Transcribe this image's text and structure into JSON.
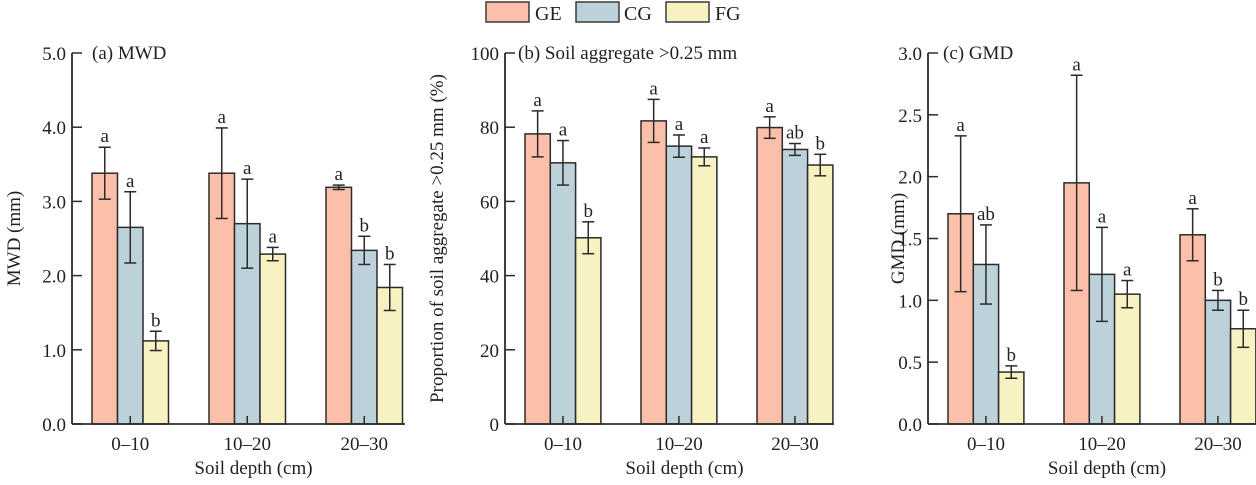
{
  "legend": [
    {
      "name": "GE",
      "color": "#fbbfaa"
    },
    {
      "name": "CG",
      "color": "#bdd1da"
    },
    {
      "name": "FG",
      "color": "#f8f1c1"
    }
  ],
  "chart_data": [
    {
      "type": "bar",
      "title": "(a) MWD",
      "xlabel": "Soil depth (cm)",
      "ylabel": "MWD (mm)",
      "categories": [
        "0–10",
        "10–20",
        "20–30"
      ],
      "ylim": [
        0,
        5.0
      ],
      "yticks": [
        "0.0",
        "1.0",
        "2.0",
        "3.0",
        "4.0",
        "5.0"
      ],
      "ytick_values": [
        0,
        1,
        2,
        3,
        4,
        5
      ],
      "series": [
        {
          "name": "GE",
          "values": [
            3.38,
            3.38,
            3.19
          ],
          "errors": [
            0.35,
            0.61,
            0.03
          ],
          "letters": [
            "a",
            "a",
            "a"
          ]
        },
        {
          "name": "CG",
          "values": [
            2.65,
            2.7,
            2.34
          ],
          "errors": [
            0.48,
            0.6,
            0.19
          ],
          "letters": [
            "a",
            "a",
            "b"
          ]
        },
        {
          "name": "FG",
          "values": [
            1.12,
            2.29,
            1.84
          ],
          "errors": [
            0.13,
            0.09,
            0.31
          ],
          "letters": [
            "b",
            "a",
            "b"
          ]
        }
      ]
    },
    {
      "type": "bar",
      "title": "(b) Soil aggregate >0.25 mm",
      "xlabel": "Soil depth (cm)",
      "ylabel": "Proportion of soil aggregate >0.25 mm (%)",
      "categories": [
        "0–10",
        "10–20",
        "20–30"
      ],
      "ylim": [
        0,
        100
      ],
      "yticks": [
        "0",
        "20",
        "40",
        "60",
        "80",
        "100"
      ],
      "ytick_values": [
        0,
        20,
        40,
        60,
        80,
        100
      ],
      "series": [
        {
          "name": "GE",
          "values": [
            78.2,
            81.7,
            79.9
          ],
          "errors": [
            6.2,
            5.8,
            2.9
          ],
          "letters": [
            "a",
            "a",
            "a"
          ]
        },
        {
          "name": "CG",
          "values": [
            70.4,
            74.9,
            74.0
          ],
          "errors": [
            6.0,
            3.0,
            1.6
          ],
          "letters": [
            "a",
            "a",
            "ab"
          ]
        },
        {
          "name": "FG",
          "values": [
            50.2,
            72.0,
            69.8
          ],
          "errors": [
            4.3,
            2.4,
            2.9
          ],
          "letters": [
            "b",
            "a",
            "b"
          ]
        }
      ]
    },
    {
      "type": "bar",
      "title": "(c) GMD",
      "xlabel": "Soil depth (cm)",
      "ylabel": "GMD (mm)",
      "categories": [
        "0–10",
        "10–20",
        "20–30"
      ],
      "ylim": [
        0,
        3.0
      ],
      "yticks": [
        "0.0",
        "0.5",
        "1.0",
        "1.5",
        "2.0",
        "2.5",
        "3.0"
      ],
      "ytick_values": [
        0,
        0.5,
        1.0,
        1.5,
        2.0,
        2.5,
        3.0
      ],
      "series": [
        {
          "name": "GE",
          "values": [
            1.7,
            1.95,
            1.53
          ],
          "errors": [
            0.63,
            0.87,
            0.21
          ],
          "letters": [
            "a",
            "a",
            "a"
          ]
        },
        {
          "name": "CG",
          "values": [
            1.29,
            1.21,
            1.0
          ],
          "errors": [
            0.32,
            0.38,
            0.08
          ],
          "letters": [
            "ab",
            "a",
            "b"
          ]
        },
        {
          "name": "FG",
          "values": [
            0.42,
            1.05,
            0.77
          ],
          "errors": [
            0.05,
            0.11,
            0.15
          ],
          "letters": [
            "b",
            "a",
            "b"
          ]
        }
      ]
    }
  ]
}
